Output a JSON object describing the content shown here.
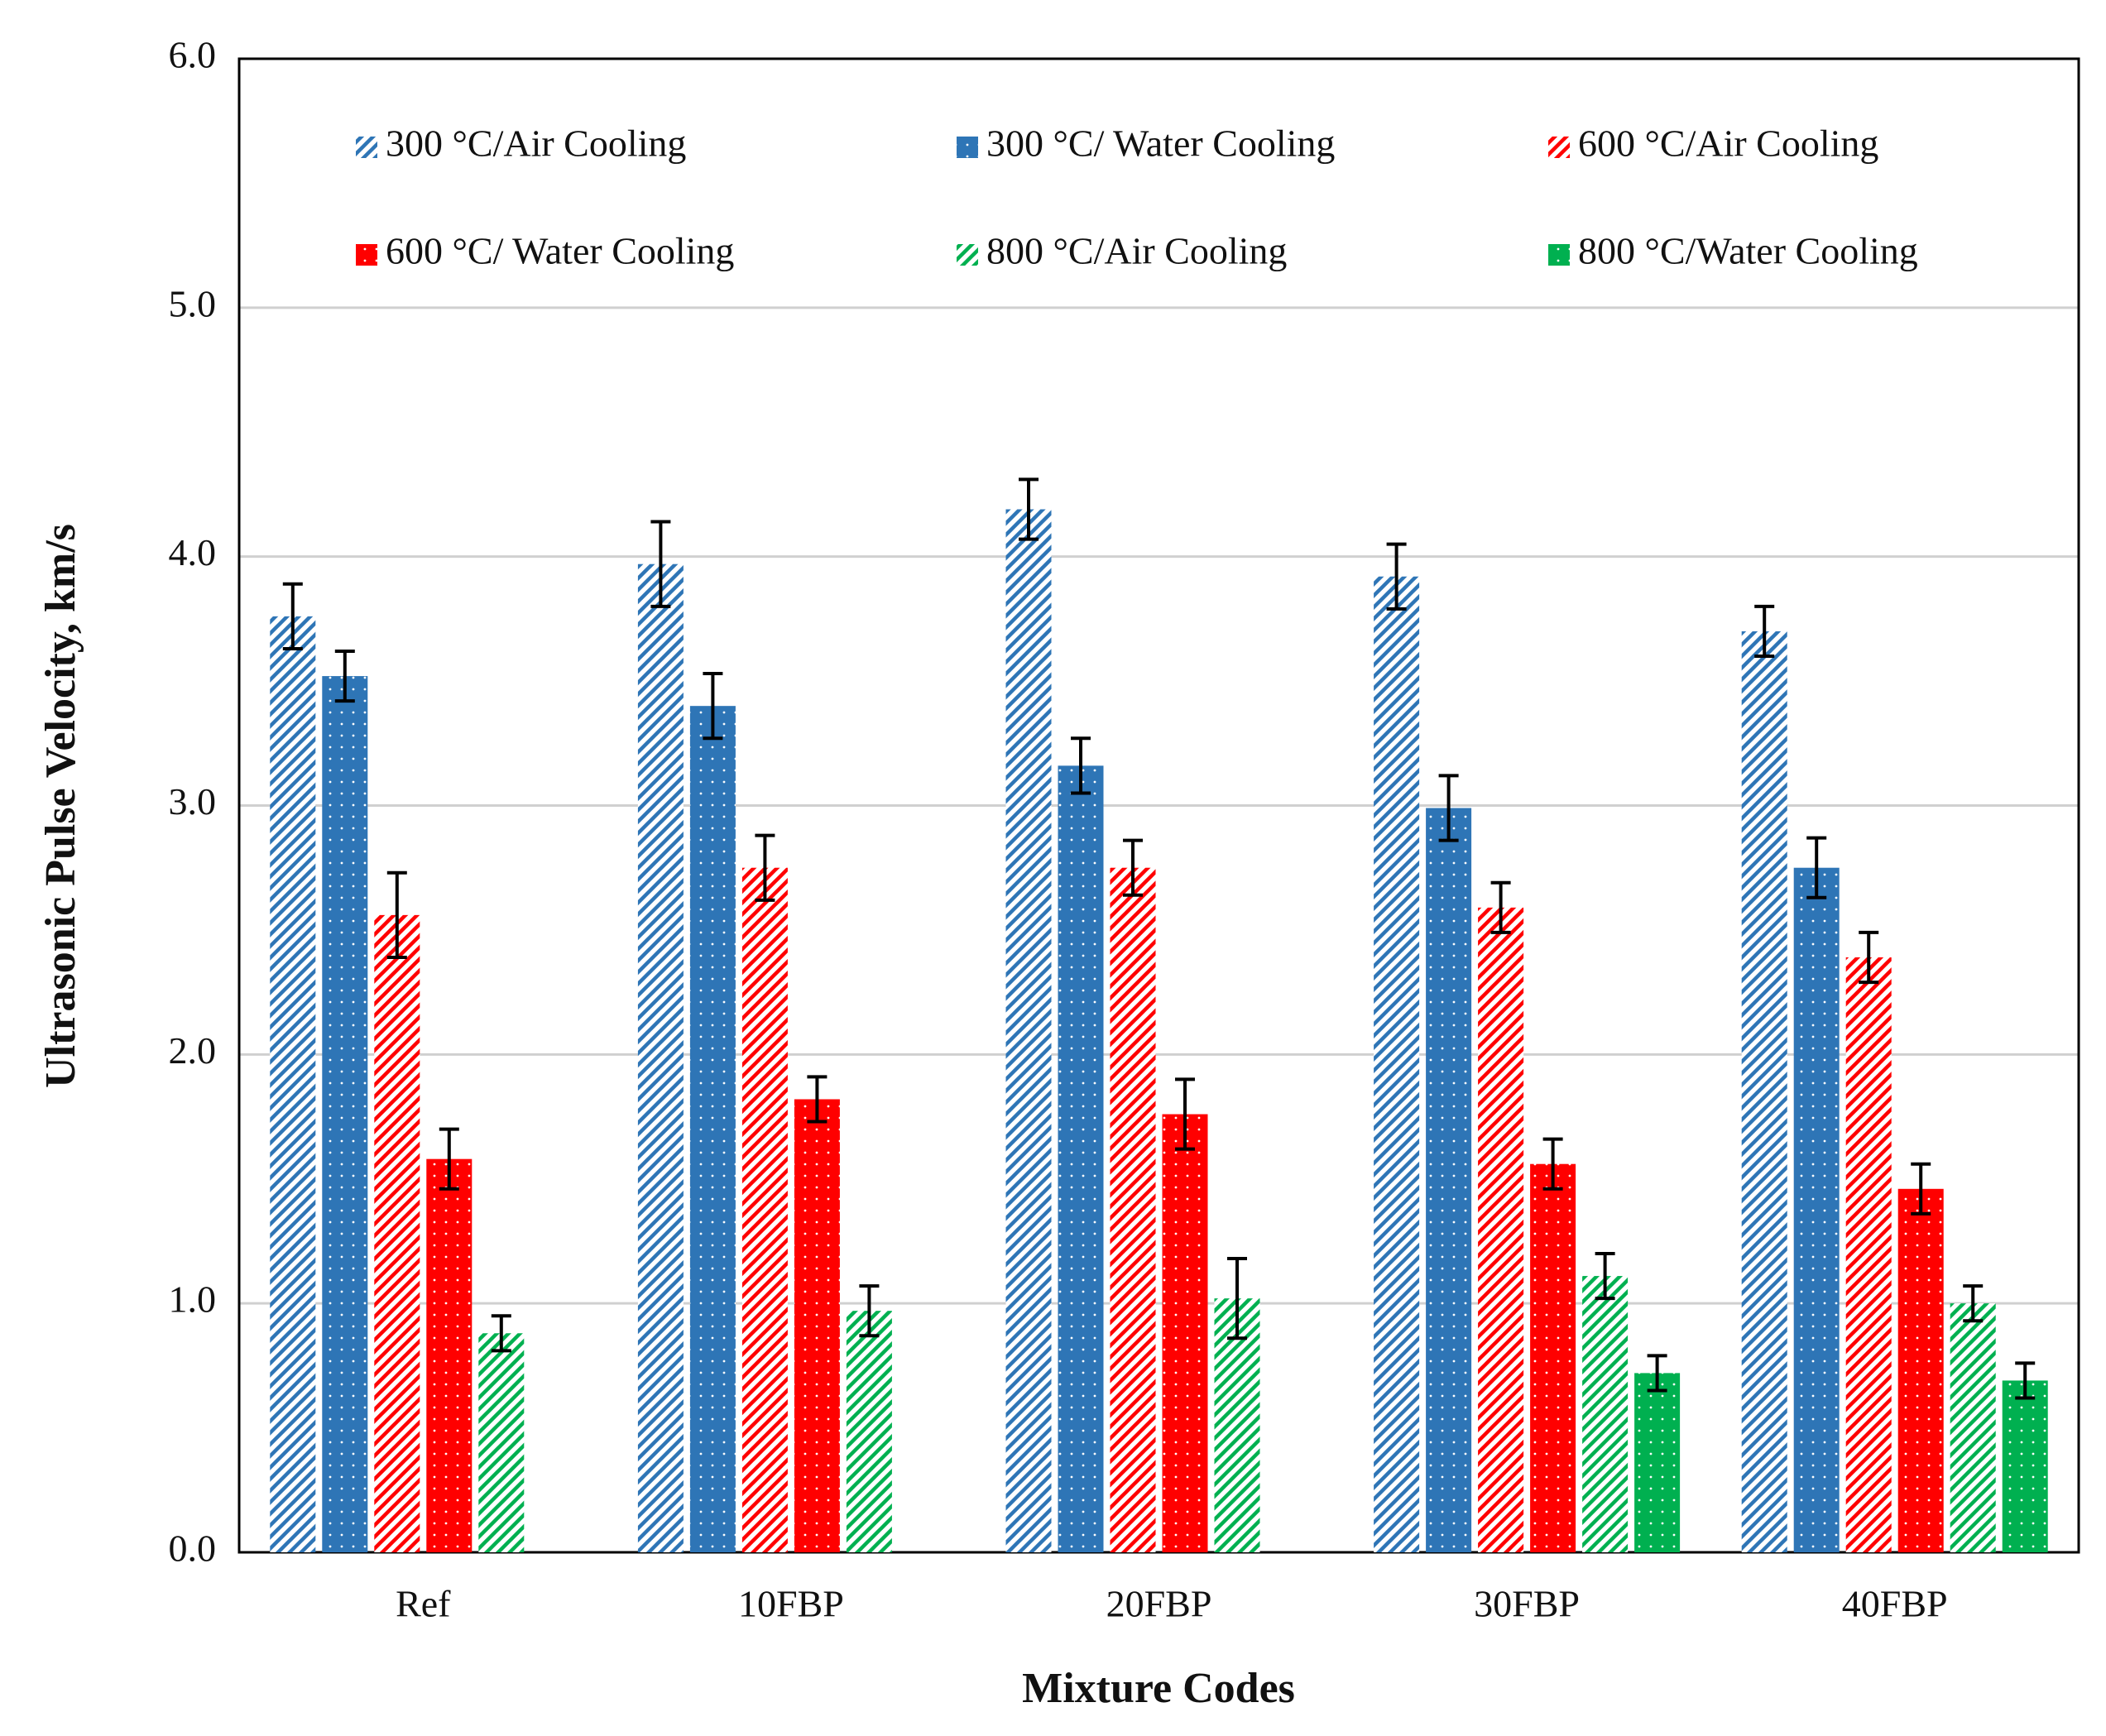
{
  "chart_data": {
    "type": "bar",
    "x_label": "Mixture Codes",
    "y_label": "Ultrasonic Pulse Velocity, km/s",
    "categories": [
      "Ref",
      "10FBP",
      "20FBP",
      "30FBP",
      "40FBP"
    ],
    "series": [
      {
        "name": "300 °C/Air Cooling",
        "color": "#2E75B6",
        "pattern": "hatch",
        "values": [
          3.76,
          3.97,
          4.19,
          3.92,
          3.7
        ],
        "errors": [
          0.13,
          0.17,
          0.12,
          0.13,
          0.1
        ]
      },
      {
        "name": "300 °C/ Water Cooling",
        "color": "#2E75B6",
        "pattern": "dots",
        "values": [
          3.52,
          3.4,
          3.16,
          2.99,
          2.75
        ],
        "errors": [
          0.1,
          0.13,
          0.11,
          0.13,
          0.12
        ]
      },
      {
        "name": "600 °C/Air Cooling",
        "color": "#FF0000",
        "pattern": "hatch",
        "values": [
          2.56,
          2.75,
          2.75,
          2.59,
          2.39
        ],
        "errors": [
          0.17,
          0.13,
          0.11,
          0.1,
          0.1
        ]
      },
      {
        "name": "600 °C/ Water Cooling",
        "color": "#FF0000",
        "pattern": "dots",
        "values": [
          1.58,
          1.82,
          1.76,
          1.56,
          1.46
        ],
        "errors": [
          0.12,
          0.09,
          0.14,
          0.1,
          0.1
        ]
      },
      {
        "name": "800 °C/Air Cooling",
        "color": "#00B050",
        "pattern": "hatch",
        "values": [
          0.88,
          0.97,
          1.02,
          1.11,
          1.0
        ],
        "errors": [
          0.07,
          0.1,
          0.16,
          0.09,
          0.07
        ]
      },
      {
        "name": "800 °C/Water Cooling",
        "color": "#00B050",
        "pattern": "dots",
        "values": [
          null,
          null,
          null,
          0.72,
          0.69
        ],
        "errors": [
          null,
          null,
          null,
          0.07,
          0.07
        ]
      }
    ],
    "ylim": [
      0,
      6
    ],
    "yticks": [
      {
        "value": 0,
        "label": "0.0"
      },
      {
        "value": 1,
        "label": "1.0"
      },
      {
        "value": 2,
        "label": "2.0"
      },
      {
        "value": 3,
        "label": "3.0"
      },
      {
        "value": 4,
        "label": "4.0"
      },
      {
        "value": 5,
        "label": "5.0"
      },
      {
        "value": 6,
        "label": "6.0"
      }
    ],
    "grid": true,
    "legend": "top"
  }
}
